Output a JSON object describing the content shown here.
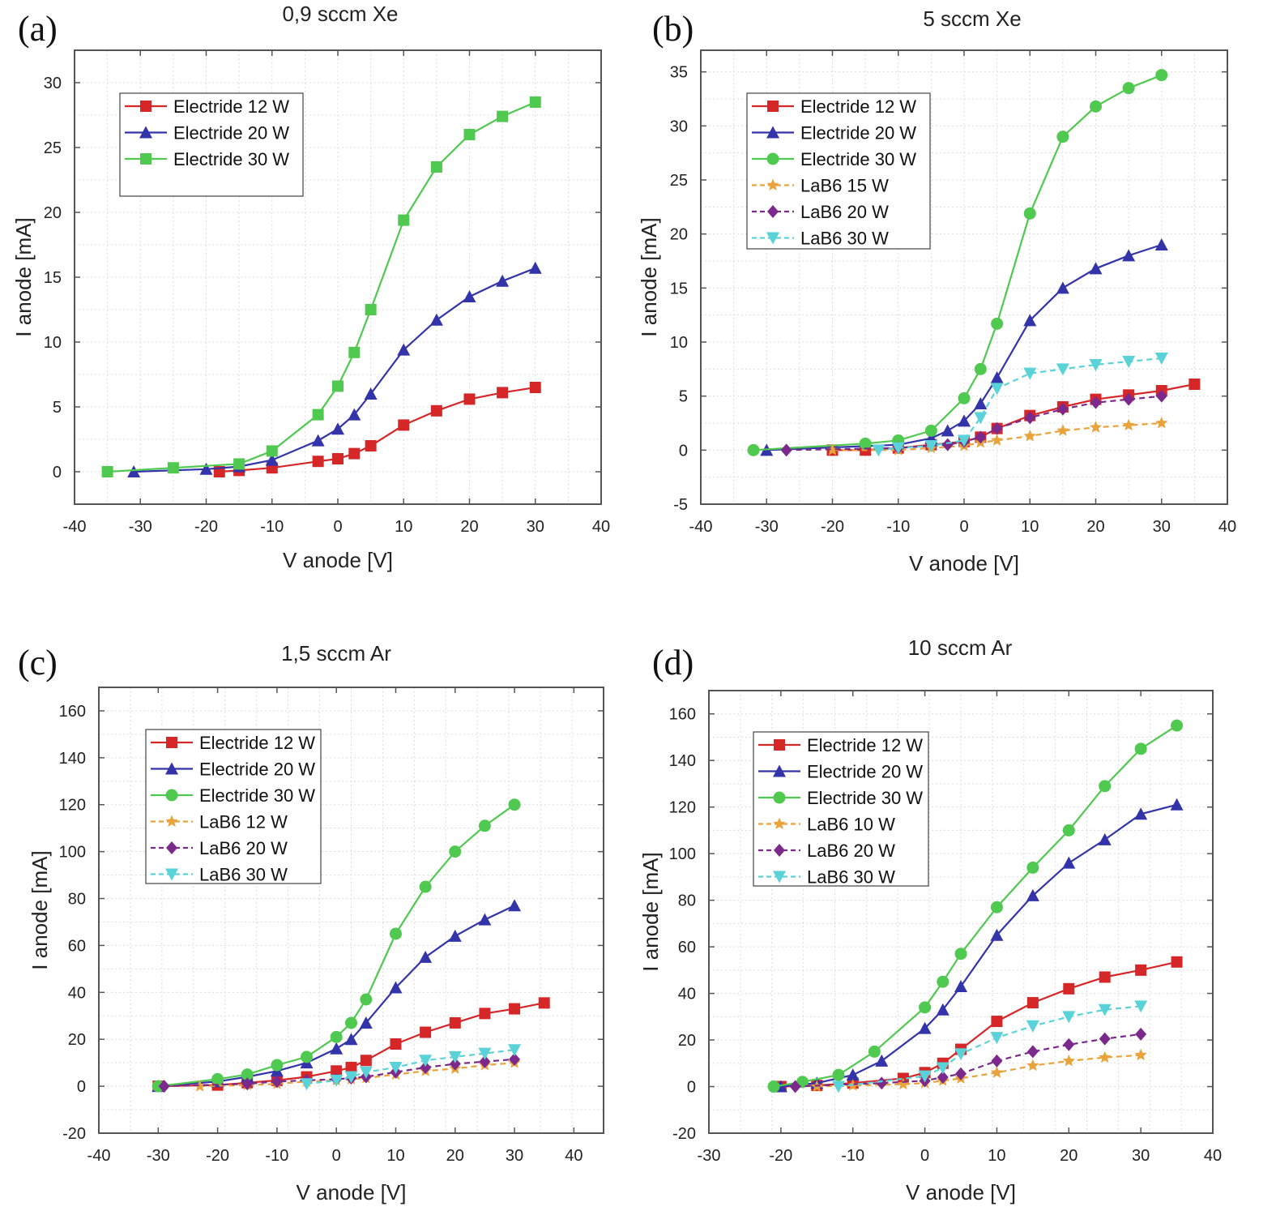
{
  "chart_data": [
    {
      "panel_label": "(a)",
      "type": "line",
      "title": "0,9 sccm Xe",
      "xlabel": "V anode [V]",
      "ylabel": "I anode [mA]",
      "xlim": [
        -40,
        40
      ],
      "ylim": [
        -2.5,
        32.5
      ],
      "xticks": [
        -40,
        -30,
        -20,
        -10,
        0,
        10,
        20,
        30,
        40
      ],
      "yticks": [
        0,
        5,
        10,
        15,
        20,
        25,
        30
      ],
      "grid": true,
      "legend_position": "top-left",
      "series": [
        {
          "name": "Electride 12 W",
          "color": "#d62728",
          "marker": "square",
          "dashed": false,
          "x": [
            -18,
            -15,
            -10,
            -3,
            0,
            2.5,
            5,
            10,
            15,
            20,
            25,
            30
          ],
          "y": [
            0,
            0.1,
            0.3,
            0.8,
            1.0,
            1.4,
            2.0,
            3.6,
            4.7,
            5.6,
            6.1,
            6.5
          ]
        },
        {
          "name": "Electride 20 W",
          "color": "#3333aa",
          "marker": "triangle-up",
          "dashed": false,
          "x": [
            -31,
            -20,
            -15,
            -10,
            -3,
            0,
            2.5,
            5,
            10,
            15,
            20,
            25,
            30
          ],
          "y": [
            0,
            0.2,
            0.4,
            0.9,
            2.4,
            3.3,
            4.4,
            6.0,
            9.4,
            11.7,
            13.5,
            14.7,
            15.7
          ]
        },
        {
          "name": "Electride 30 W",
          "color": "#4fc94f",
          "marker": "square",
          "dashed": false,
          "x": [
            -35,
            -25,
            -15,
            -10,
            -3,
            0,
            2.5,
            5,
            10,
            15,
            20,
            25,
            30
          ],
          "y": [
            0,
            0.3,
            0.6,
            1.6,
            4.4,
            6.6,
            9.2,
            12.5,
            19.4,
            23.5,
            26.0,
            27.4,
            28.5
          ]
        }
      ]
    },
    {
      "panel_label": "(b)",
      "type": "line",
      "title": "5 sccm Xe",
      "xlabel": "V anode [V]",
      "ylabel": "I anode [mA]",
      "xlim": [
        -40,
        40
      ],
      "ylim": [
        -5,
        37
      ],
      "xticks": [
        -40,
        -30,
        -20,
        -10,
        0,
        10,
        20,
        30,
        40
      ],
      "yticks": [
        -5,
        0,
        5,
        10,
        15,
        20,
        25,
        30,
        35
      ],
      "grid": true,
      "legend_position": "top-left",
      "series": [
        {
          "name": "Electride 12 W",
          "color": "#d62728",
          "marker": "square",
          "dashed": false,
          "x": [
            -20,
            -15,
            -10,
            -5,
            0,
            2.5,
            5,
            10,
            15,
            20,
            25,
            30,
            35
          ],
          "y": [
            0,
            0,
            0.2,
            0.5,
            0.8,
            1.2,
            2.0,
            3.2,
            4.0,
            4.7,
            5.1,
            5.5,
            6.1
          ]
        },
        {
          "name": "Electride 20 W",
          "color": "#3333aa",
          "marker": "triangle-up",
          "dashed": false,
          "x": [
            -30,
            -10,
            -5,
            -2.5,
            0,
            2.5,
            5,
            10,
            15,
            20,
            25,
            30
          ],
          "y": [
            0,
            0.5,
            1.1,
            1.8,
            2.7,
            4.3,
            6.7,
            12.0,
            15.0,
            16.8,
            18.0,
            19.0
          ]
        },
        {
          "name": "Electride 30 W",
          "color": "#4fc94f",
          "marker": "circle",
          "dashed": false,
          "x": [
            -32,
            -15,
            -10,
            -5,
            0,
            2.5,
            5,
            10,
            15,
            20,
            25,
            30
          ],
          "y": [
            0,
            0.6,
            0.9,
            1.8,
            4.8,
            7.5,
            11.7,
            21.9,
            29.0,
            31.8,
            33.5,
            34.7
          ]
        },
        {
          "name": "LaB6 15 W",
          "color": "#e8a33c",
          "marker": "star",
          "dashed": true,
          "x": [
            -20,
            -10,
            -5,
            0,
            2.5,
            5,
            10,
            15,
            20,
            25,
            30
          ],
          "y": [
            0,
            0,
            0.2,
            0.4,
            0.7,
            0.9,
            1.3,
            1.8,
            2.1,
            2.3,
            2.5
          ]
        },
        {
          "name": "LaB6 20 W",
          "color": "#7b2a8c",
          "marker": "diamond",
          "dashed": true,
          "x": [
            -27,
            -10,
            -2.5,
            0,
            2.5,
            5,
            10,
            15,
            20,
            25,
            30
          ],
          "y": [
            0,
            0.2,
            0.5,
            0.8,
            1.2,
            2.0,
            3.0,
            3.8,
            4.4,
            4.7,
            5.0
          ]
        },
        {
          "name": "LaB6 30 W",
          "color": "#5ad3d8",
          "marker": "triangle-down",
          "dashed": true,
          "x": [
            -13,
            -10,
            -5,
            0,
            2.5,
            5,
            10,
            15,
            20,
            25,
            30
          ],
          "y": [
            0,
            0.2,
            0.4,
            0.9,
            3.0,
            5.7,
            7.1,
            7.5,
            7.9,
            8.2,
            8.5
          ]
        }
      ]
    },
    {
      "panel_label": "(c)",
      "type": "line",
      "title": "1,5 sccm Ar",
      "xlabel": "V anode [V]",
      "ylabel": "I anode [mA]",
      "xlim": [
        -40,
        45
      ],
      "ylim": [
        -20,
        170
      ],
      "xticks": [
        -40,
        -30,
        -20,
        -10,
        0,
        10,
        20,
        30,
        40
      ],
      "yticks": [
        -20,
        0,
        20,
        40,
        60,
        80,
        100,
        120,
        140,
        160
      ],
      "grid": true,
      "legend_position": "top-left",
      "series": [
        {
          "name": "Electride 12 W",
          "color": "#d62728",
          "marker": "square",
          "dashed": false,
          "x": [
            -30,
            -20,
            -15,
            -10,
            -5,
            0,
            2.5,
            5,
            10,
            15,
            20,
            25,
            30,
            35
          ],
          "y": [
            0,
            0.5,
            1.5,
            2.5,
            4,
            6.5,
            8,
            11,
            18,
            23,
            27,
            31,
            33,
            35.5
          ]
        },
        {
          "name": "Electride 20 W",
          "color": "#3333aa",
          "marker": "triangle-up",
          "dashed": false,
          "x": [
            -30,
            -20,
            -15,
            -10,
            -5,
            0,
            2.5,
            5,
            10,
            15,
            20,
            25,
            30
          ],
          "y": [
            0,
            2,
            4,
            6.5,
            10,
            16,
            20,
            27,
            42,
            55,
            64,
            71,
            77
          ]
        },
        {
          "name": "Electride 30 W",
          "color": "#4fc94f",
          "marker": "circle",
          "dashed": false,
          "x": [
            -30,
            -20,
            -15,
            -10,
            -5,
            0,
            2.5,
            5,
            10,
            15,
            20,
            25,
            30
          ],
          "y": [
            0,
            3,
            5,
            9,
            12.5,
            21,
            27,
            37,
            65,
            85,
            100,
            111,
            120
          ]
        },
        {
          "name": "LaB6 12 W",
          "color": "#e8a33c",
          "marker": "star",
          "dashed": true,
          "x": [
            -23,
            -15,
            -10,
            -5,
            0,
            2.5,
            5,
            10,
            15,
            20,
            25,
            30
          ],
          "y": [
            0,
            0.5,
            1,
            2,
            2.5,
            3,
            3.5,
            5,
            6.5,
            7.5,
            9,
            10
          ]
        },
        {
          "name": "LaB6 20 W",
          "color": "#7b2a8c",
          "marker": "diamond",
          "dashed": true,
          "x": [
            -29,
            -15,
            -10,
            -5,
            0,
            2.5,
            5,
            10,
            15,
            20,
            25,
            30
          ],
          "y": [
            0,
            1,
            2,
            2.5,
            3,
            3.5,
            4,
            6,
            8,
            9.5,
            10.5,
            11.5
          ]
        },
        {
          "name": "LaB6 30 W",
          "color": "#5ad3d8",
          "marker": "triangle-down",
          "dashed": true,
          "x": [
            -5,
            0,
            2.5,
            5,
            10,
            15,
            20,
            25,
            30
          ],
          "y": [
            1,
            2.5,
            4,
            6,
            8,
            11,
            12.5,
            14,
            15.5
          ]
        }
      ]
    },
    {
      "panel_label": "(d)",
      "type": "line",
      "title": "10 sccm Ar",
      "xlabel": "V anode [V]",
      "ylabel": "I anode [mA]",
      "xlim": [
        -30,
        40
      ],
      "ylim": [
        -20,
        170
      ],
      "xticks": [
        -30,
        -20,
        -10,
        0,
        10,
        20,
        30,
        40
      ],
      "yticks": [
        -20,
        0,
        20,
        40,
        60,
        80,
        100,
        120,
        140,
        160
      ],
      "grid": true,
      "legend_position": "top-left",
      "series": [
        {
          "name": "Electride 12 W",
          "color": "#d62728",
          "marker": "square",
          "dashed": false,
          "x": [
            -20,
            -15,
            -10,
            -3,
            0,
            2.5,
            5,
            10,
            15,
            20,
            25,
            30,
            35
          ],
          "y": [
            0,
            0.5,
            1.5,
            3.5,
            6,
            10,
            16,
            28,
            36,
            42,
            47,
            50,
            53.5
          ]
        },
        {
          "name": "Electride 20 W",
          "color": "#3333aa",
          "marker": "triangle-up",
          "dashed": false,
          "x": [
            -20,
            -15,
            -10,
            -6,
            0,
            2.5,
            5,
            10,
            15,
            20,
            25,
            30,
            35
          ],
          "y": [
            0,
            1.5,
            5,
            11,
            25,
            33,
            43,
            65,
            82,
            96,
            106,
            117,
            121
          ]
        },
        {
          "name": "Electride 30 W",
          "color": "#4fc94f",
          "marker": "circle",
          "dashed": false,
          "x": [
            -21,
            -17,
            -12,
            -7,
            0,
            2.5,
            5,
            10,
            15,
            20,
            25,
            30,
            35
          ],
          "y": [
            0,
            2,
            5,
            15,
            34,
            45,
            57,
            77,
            94,
            110,
            129,
            145,
            155
          ]
        },
        {
          "name": "LaB6 10 W",
          "color": "#e8a33c",
          "marker": "star",
          "dashed": true,
          "x": [
            -15,
            -10,
            -3,
            0,
            2.5,
            5,
            10,
            15,
            20,
            25,
            30
          ],
          "y": [
            0,
            0.5,
            1,
            1.5,
            2.5,
            3.5,
            6,
            9,
            11,
            12.5,
            13.5
          ]
        },
        {
          "name": "LaB6 20 W",
          "color": "#7b2a8c",
          "marker": "diamond",
          "dashed": true,
          "x": [
            -18,
            -6,
            0,
            2.5,
            5,
            10,
            15,
            20,
            25,
            30
          ],
          "y": [
            0,
            1.5,
            2.5,
            4,
            5.5,
            11,
            15,
            18,
            20.5,
            22.5
          ]
        },
        {
          "name": "LaB6 30 W",
          "color": "#5ad3d8",
          "marker": "triangle-down",
          "dashed": true,
          "x": [
            -12,
            0,
            2.5,
            5,
            10,
            15,
            20,
            25,
            30
          ],
          "y": [
            0,
            4.5,
            8,
            14,
            21,
            26,
            30,
            33,
            34.5
          ]
        }
      ]
    }
  ]
}
